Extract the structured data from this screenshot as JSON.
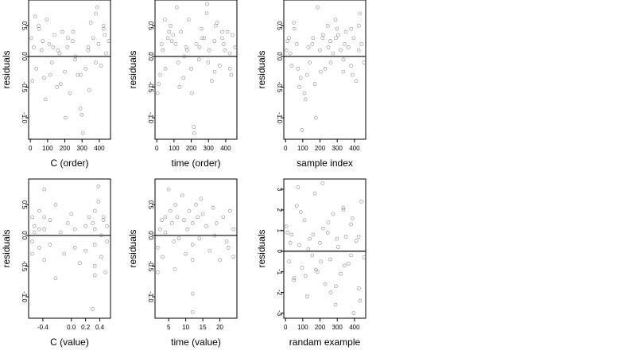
{
  "chart_data": [
    {
      "type": "scatter",
      "xlabel": "C (order)",
      "ylabel": "residuals",
      "xlim": [
        -10,
        465
      ],
      "ylim": [
        -1.35,
        0.92
      ],
      "x_ticks": [
        "0",
        "100",
        "200",
        "300",
        "400"
      ],
      "x_tick_values": [
        0,
        100,
        200,
        300,
        400
      ],
      "y_ticks": [
        "-1.0",
        "-0.5",
        "0.0",
        "0.5"
      ],
      "y_tick_values": [
        -1.0,
        -0.5,
        0.0,
        0.5
      ],
      "reference_line_y": 0,
      "series": [
        {
          "x": [
            5,
            20,
            35,
            50,
            65,
            80,
            95,
            110,
            125,
            140,
            155,
            170,
            185,
            200,
            215,
            230,
            245,
            260,
            275,
            290,
            305,
            320,
            335,
            350,
            365,
            380,
            395,
            410,
            425,
            440,
            455,
            12,
            48,
            88,
            132,
            176,
            218,
            262,
            298,
            342,
            388,
            432,
            28,
            72,
            116,
            160,
            204,
            248,
            292,
            336,
            380,
            424
          ],
          "y": [
            0.3,
            0.15,
            -0.2,
            0.45,
            0.1,
            -0.35,
            0.6,
            0.2,
            -0.1,
            0.35,
            -0.5,
            0.05,
            0.4,
            -0.25,
            0.15,
            -0.6,
            0.25,
            -0.05,
            -0.3,
            -0.85,
            -1.25,
            -0.2,
            0.1,
            0.55,
            0.3,
            0.7,
            0.2,
            -0.15,
            0.45,
            0.05,
            0.25,
            -0.4,
            0.5,
            -0.7,
            0.15,
            -0.45,
            0.3,
            0.0,
            -0.95,
            -0.55,
            0.8,
            0.35,
            0.65,
            0.25,
            -0.3,
            0.1,
            -1.0,
            0.4,
            -0.3,
            0.15,
            -0.1,
            0.5
          ]
        }
      ]
    },
    {
      "type": "scatter",
      "xlabel": "time (order)",
      "ylabel": "residuals",
      "xlim": [
        -10,
        465
      ],
      "ylim": [
        -1.35,
        0.92
      ],
      "x_ticks": [
        "0",
        "100",
        "200",
        "300",
        "400"
      ],
      "x_tick_values": [
        0,
        100,
        200,
        300,
        400
      ],
      "y_ticks": [
        "-1.0",
        "-0.5",
        "0.0",
        "0.5"
      ],
      "y_tick_values": [
        -1.0,
        -0.5,
        0.0,
        0.5
      ],
      "reference_line_y": 0,
      "series": [
        {
          "x": [
            5,
            20,
            35,
            50,
            65,
            80,
            95,
            110,
            125,
            140,
            155,
            170,
            185,
            200,
            215,
            230,
            245,
            260,
            275,
            290,
            305,
            320,
            335,
            350,
            365,
            380,
            395,
            410,
            425,
            440,
            455,
            12,
            48,
            88,
            132,
            176,
            218,
            262,
            298,
            342,
            388,
            432,
            28,
            72,
            116,
            160,
            204,
            248,
            292,
            336,
            380,
            424
          ],
          "y": [
            -0.6,
            -0.3,
            0.1,
            -0.2,
            0.3,
            0.5,
            0.35,
            0.2,
            -0.1,
            0.4,
            -0.35,
            0.15,
            0.6,
            -0.2,
            -1.15,
            0.2,
            -0.05,
            0.45,
            0.3,
            0.7,
            0.1,
            -0.4,
            0.25,
            0.55,
            -0.15,
            0.3,
            0.1,
            0.4,
            -0.2,
            0.35,
            0.15,
            -0.45,
            0.6,
            0.25,
            -0.5,
            0.1,
            -1.25,
            0.3,
            -0.1,
            0.5,
            0.2,
            -0.3,
            0.2,
            0.4,
            0.8,
            0.0,
            -0.6,
            0.15,
            0.85,
            -0.25,
            0.4,
            0.05
          ]
        }
      ]
    },
    {
      "type": "scatter",
      "xlabel": "sample index",
      "ylabel": "residuals",
      "xlim": [
        -10,
        465
      ],
      "ylim": [
        -1.35,
        0.92
      ],
      "x_ticks": [
        "0",
        "100",
        "200",
        "300",
        "400"
      ],
      "x_tick_values": [
        0,
        100,
        200,
        300,
        400
      ],
      "y_ticks": [
        "-1.0",
        "-0.5",
        "0.0",
        "0.5"
      ],
      "y_tick_values": [
        -1.0,
        -0.5,
        0.0,
        0.5
      ],
      "reference_line_y": 0,
      "series": [
        {
          "x": [
            5,
            20,
            35,
            50,
            65,
            80,
            95,
            110,
            125,
            140,
            155,
            170,
            185,
            200,
            215,
            230,
            245,
            260,
            275,
            290,
            305,
            320,
            335,
            350,
            365,
            380,
            395,
            410,
            425,
            440,
            455,
            12,
            48,
            88,
            132,
            176,
            218,
            262,
            298,
            342,
            388,
            432,
            28,
            72,
            116,
            160,
            204,
            248,
            292,
            336,
            380,
            424
          ],
          "y": [
            0.1,
            0.3,
            -0.15,
            0.45,
            0.2,
            -0.5,
            -1.2,
            -0.6,
            -0.3,
            -0.1,
            0.2,
            -0.45,
            0.8,
            0.1,
            0.3,
            -0.2,
            0.5,
            0.25,
            0.05,
            0.6,
            0.35,
            0.1,
            -0.25,
            0.4,
            0.15,
            -0.15,
            0.3,
            -0.4,
            0.5,
            0.2,
            -0.1,
            0.25,
            0.55,
            -0.35,
            0.15,
            -1.0,
            0.35,
            -0.1,
            0.45,
            0.2,
            -0.3,
            0.7,
            0.05,
            -0.2,
            -0.7,
            0.3,
            -0.25,
            0.15,
            0.3,
            -0.05,
            0.45,
            0.1
          ]
        }
      ]
    },
    {
      "type": "scatter",
      "xlabel": "C (value)",
      "ylabel": "residuals",
      "xlim": [
        -0.6,
        0.55
      ],
      "ylim": [
        -1.35,
        0.92
      ],
      "x_ticks": [
        "-0.4",
        "0.0",
        "0.2",
        "0.4"
      ],
      "x_tick_values": [
        -0.4,
        0.0,
        0.2,
        0.4
      ],
      "y_ticks": [
        "-1.0",
        "-0.5",
        "0.0",
        "0.5"
      ],
      "y_tick_values": [
        -1.0,
        -0.5,
        0.0,
        0.5
      ],
      "reference_line_y": 0,
      "series": [
        {
          "x": [
            -0.55,
            -0.55,
            -0.55,
            -0.52,
            -0.52,
            -0.45,
            -0.45,
            -0.45,
            -0.38,
            -0.38,
            -0.38,
            -0.38,
            -0.3,
            -0.3,
            -0.22,
            -0.22,
            -0.15,
            -0.1,
            -0.05,
            0.0,
            0.05,
            0.05,
            0.12,
            0.2,
            0.2,
            0.25,
            0.3,
            0.3,
            0.33,
            0.33,
            0.33,
            0.33,
            0.33,
            0.38,
            0.38,
            0.42,
            0.42,
            0.45,
            0.45,
            0.48,
            0.5,
            0.5
          ],
          "y": [
            0.3,
            -0.1,
            -0.3,
            0.15,
            0.05,
            0.4,
            -0.2,
            0.1,
            0.75,
            0.3,
            -0.4,
            0.1,
            -0.15,
            0.25,
            -0.7,
            0.5,
            0.05,
            -0.3,
            0.2,
            0.35,
            -0.2,
            0.1,
            -0.45,
            0.15,
            -0.25,
            0.3,
            -1.2,
            0.2,
            -0.5,
            0.1,
            0.4,
            -0.15,
            -0.65,
            0.55,
            0.8,
            0.0,
            -0.35,
            0.25,
            0.3,
            -0.6,
            0.15,
            -0.1
          ]
        }
      ]
    },
    {
      "type": "scatter",
      "xlabel": "time (value)",
      "ylabel": "residuals",
      "xlim": [
        1,
        25
      ],
      "ylim": [
        -1.35,
        0.92
      ],
      "x_ticks": [
        "5",
        "10",
        "15",
        "20"
      ],
      "x_tick_values": [
        5,
        10,
        15,
        20
      ],
      "y_ticks": [
        "-1.0",
        "-0.5",
        "0.0",
        "0.5"
      ],
      "y_tick_values": [
        -1.0,
        -0.5,
        0.0,
        0.5
      ],
      "reference_line_y": 0,
      "series": [
        {
          "x": [
            1.8,
            1.8,
            2.5,
            3.2,
            4.0,
            4.0,
            5.0,
            5.5,
            6.0,
            6.5,
            7.0,
            7.5,
            8.0,
            9.0,
            9.5,
            10.0,
            10.5,
            11.0,
            12.0,
            12.0,
            12.0,
            12.0,
            12.0,
            13.0,
            13.5,
            14.0,
            15.0,
            16.0,
            17.0,
            18.0,
            19.0,
            20.0,
            21.0,
            22.0,
            23.0,
            24.0,
            24.0,
            3.0,
            6.8,
            14.5,
            18.5,
            22.5
          ],
          "y": [
            -0.6,
            -0.2,
            0.1,
            -0.35,
            0.3,
            0.05,
            0.75,
            0.4,
            0.2,
            -0.1,
            0.5,
            0.3,
            -0.05,
            0.65,
            0.25,
            -0.3,
            0.1,
            0.4,
            -1.25,
            -0.95,
            -0.4,
            0.2,
            -0.15,
            0.5,
            0.3,
            -0.05,
            0.35,
            0.15,
            -0.25,
            0.45,
            0.2,
            -0.4,
            0.3,
            -0.1,
            0.4,
            0.1,
            -0.35,
            0.25,
            -0.55,
            0.6,
            0.0,
            -0.2
          ]
        }
      ]
    },
    {
      "type": "scatter",
      "xlabel": "randam example",
      "ylabel": "residuals",
      "xlim": [
        -10,
        465
      ],
      "ylim": [
        -3.25,
        3.5
      ],
      "x_ticks": [
        "0",
        "100",
        "200",
        "300",
        "400"
      ],
      "x_tick_values": [
        0,
        100,
        200,
        300,
        400
      ],
      "y_ticks": [
        "-3",
        "-2",
        "-1",
        "0",
        "1",
        "2",
        "3"
      ],
      "y_tick_values": [
        -3,
        -2,
        -1,
        0,
        1,
        2,
        3
      ],
      "reference_line_y": 0,
      "series": [
        {
          "x": [
            5,
            20,
            35,
            50,
            65,
            80,
            95,
            110,
            125,
            140,
            155,
            170,
            185,
            200,
            215,
            230,
            245,
            260,
            275,
            290,
            305,
            320,
            335,
            350,
            365,
            380,
            395,
            410,
            425,
            440,
            455,
            12,
            48,
            88,
            132,
            176,
            218,
            262,
            298,
            342,
            388,
            432,
            28,
            72,
            116,
            160,
            204,
            248,
            292,
            336,
            380,
            424
          ],
          "y": [
            1.2,
            -0.5,
            0.8,
            -1.3,
            2.2,
            0.3,
            -0.8,
            1.5,
            -2.2,
            0.6,
            -0.2,
            2.8,
            -1.0,
            0.4,
            3.3,
            -1.6,
            0.9,
            -0.4,
            1.8,
            -2.6,
            0.2,
            -1.1,
            2.1,
            0.7,
            -0.6,
            1.3,
            -3.0,
            0.5,
            -1.8,
            2.4,
            -0.3,
            0.9,
            -1.4,
            1.9,
            0.1,
            -0.9,
            1.1,
            -2.0,
            0.6,
            -0.7,
            1.6,
            -2.4,
            0.4,
            3.1,
            -1.2,
            0.8,
            -0.5,
            1.4,
            -1.7,
            2.0,
            -0.2,
            0.7
          ]
        }
      ]
    }
  ]
}
